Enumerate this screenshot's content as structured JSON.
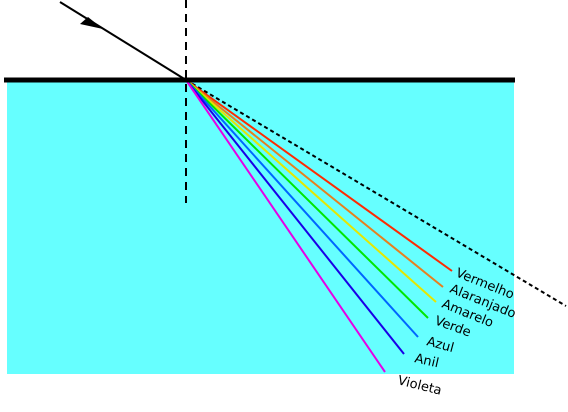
{
  "colors": {
    "medium": "#66ffff",
    "surface": "#000000",
    "incident": "#000000",
    "normal": "#000000",
    "undeviated": "#000000"
  },
  "rays": [
    {
      "label": "Vermelho",
      "color": "#ff2a00"
    },
    {
      "label": "Alaranjado",
      "color": "#e87f1d"
    },
    {
      "label": "Amarelo",
      "color": "#e6e600"
    },
    {
      "label": "Verde",
      "color": "#00e600"
    },
    {
      "label": "Azul",
      "color": "#0066ff"
    },
    {
      "label": "Anil",
      "color": "#1a00e6"
    },
    {
      "label": "Violeta",
      "color": "#e600e6"
    }
  ]
}
